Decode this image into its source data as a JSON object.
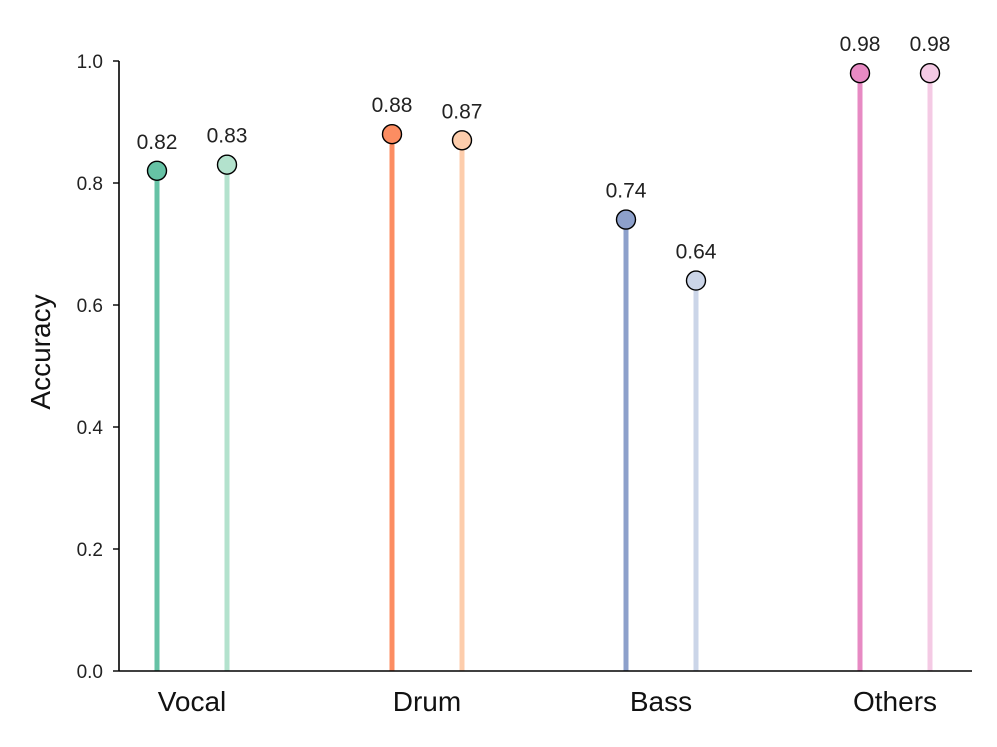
{
  "chart_data": {
    "type": "lollipop",
    "title": "",
    "xlabel": "",
    "ylabel": "Accuracy",
    "ylim": [
      0.0,
      1.0
    ],
    "yticks": [
      "0.0",
      "0.2",
      "0.4",
      "0.6",
      "0.8",
      "1.0"
    ],
    "categories": [
      "Vocal",
      "Drum",
      "Bass",
      "Others"
    ],
    "series": [
      {
        "values": [
          0.82,
          0.88,
          0.74,
          0.98
        ]
      },
      {
        "values": [
          0.83,
          0.87,
          0.64,
          0.98
        ]
      }
    ],
    "data_labels": [
      [
        "0.82",
        "0.88",
        "0.74",
        "0.98"
      ],
      [
        "0.83",
        "0.87",
        "0.64",
        "0.98"
      ]
    ],
    "colors": {
      "dark": [
        "#66c2a5",
        "#fc8d62",
        "#8da0cb",
        "#e78ac3"
      ],
      "light": [
        "#b3e2cd",
        "#fdcdac",
        "#cbd5e8",
        "#f4cae4"
      ]
    },
    "grid": false,
    "legend": "none"
  }
}
